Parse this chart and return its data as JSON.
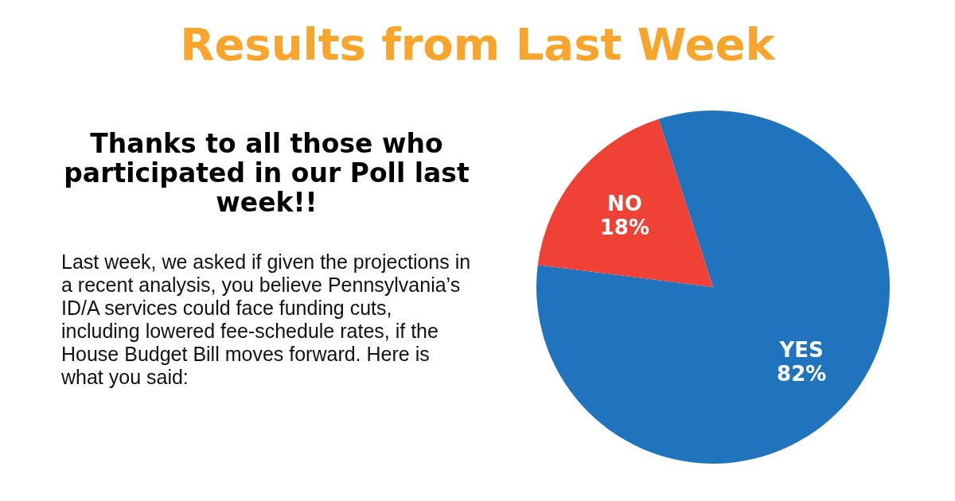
{
  "chart_data": {
    "type": "pie",
    "title": "Results from Last Week",
    "subtitle": "Thanks to all those who participated in our Poll last week!!",
    "annotations": [
      "Last week, we asked if given the projections in a recent analysis, you believe Pennsylvania’s ID/A services could face funding cuts, including lowered fee-schedule rates, if the House Budget Bill moves forward. Here is what you said:"
    ],
    "categories": [
      "YES",
      "NO"
    ],
    "values": [
      82,
      18
    ],
    "colors": [
      "#1f74bd",
      "#ef4135"
    ],
    "value_labels": [
      "82%",
      "18%"
    ],
    "legend": false
  }
}
